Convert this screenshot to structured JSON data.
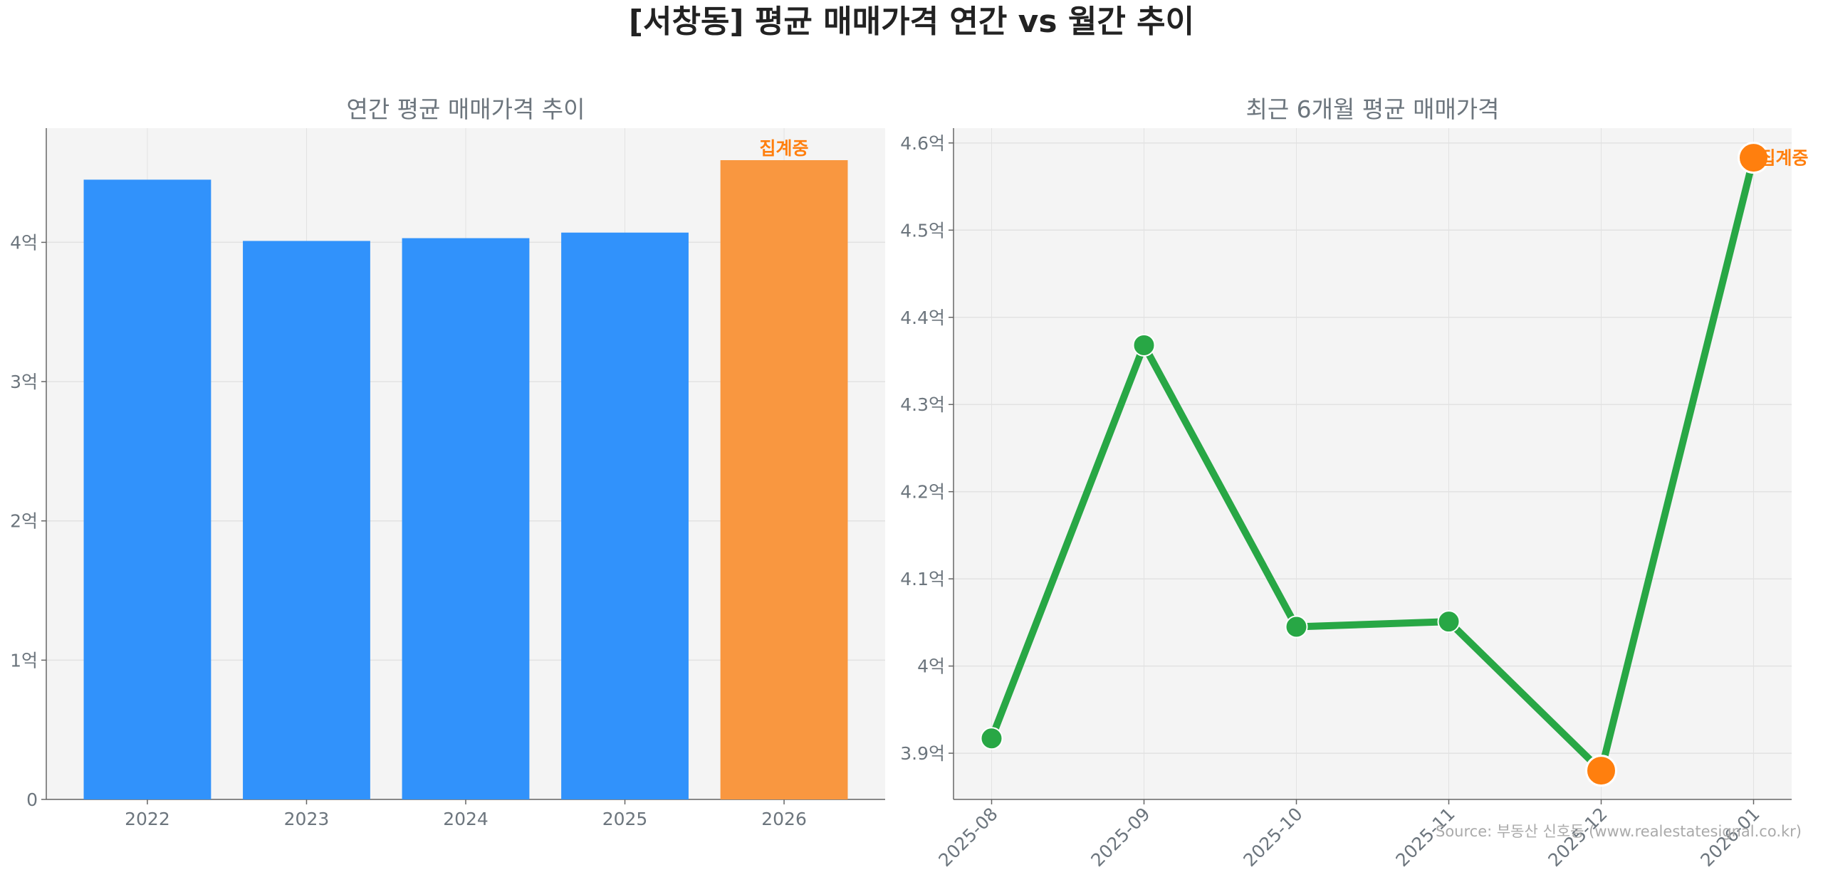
{
  "title": "[서창동] 평균 매매가격 연간 vs 월간 추이",
  "source": "Source: 부동산 신호등 (www.realestatesignal.co.kr)",
  "colors": {
    "bar": "#3192fb",
    "bar_pending": "#f99740",
    "line": "#28a745",
    "marker_highlight": "#ff7f0e",
    "pending_label": "#ff7f0e",
    "plot_bg": "#f4f4f4",
    "text": "#6c757d",
    "title": "#222222"
  },
  "chart_data": [
    {
      "type": "bar",
      "title": "연간 평균 매매가격 추이",
      "categories": [
        "2022",
        "2023",
        "2024",
        "2025",
        "2026"
      ],
      "values": [
        4.45,
        4.01,
        4.03,
        4.07,
        4.59
      ],
      "unit": "억",
      "pending_label": "집계중",
      "pending_index": 4,
      "ylim": [
        0,
        4.82
      ],
      "yticks": [
        0,
        1,
        2,
        3,
        4
      ],
      "ytick_labels": [
        "0",
        "1억",
        "2억",
        "3억",
        "4억"
      ],
      "grid": true
    },
    {
      "type": "line",
      "title": "최근 6개월 평균 매매가격",
      "categories": [
        "2025-08",
        "2025-09",
        "2025-10",
        "2025-11",
        "2025-12",
        "2026-01"
      ],
      "values": [
        3.917,
        4.368,
        4.045,
        4.051,
        3.88,
        4.583
      ],
      "highlight_indices": [
        4,
        5
      ],
      "pending_label": "집계중",
      "pending_index": 5,
      "ylim": [
        3.847,
        4.617
      ],
      "yticks": [
        3.9,
        4.0,
        4.1,
        4.2,
        4.3,
        4.4,
        4.5,
        4.6
      ],
      "ytick_labels": [
        "3.9억",
        "4억",
        "4.1억",
        "4.2억",
        "4.3억",
        "4.4억",
        "4.5억",
        "4.6억"
      ],
      "grid": true
    }
  ]
}
